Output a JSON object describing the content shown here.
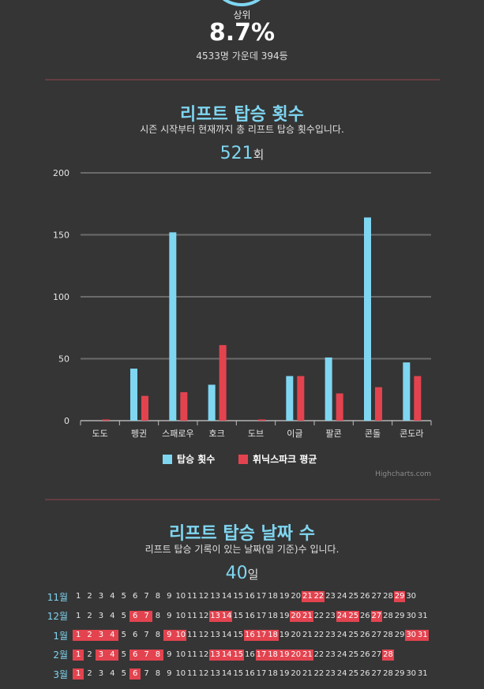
{
  "rank": {
    "label": "상위",
    "percent": "8.7%",
    "detail": "4533명 가운데 394등"
  },
  "lift": {
    "title": "리프트 탑승 횟수",
    "subtitle": "시즌 시작부터 현재까지 총 리프트 탑승 횟수입니다.",
    "total": "521",
    "total_unit": "회"
  },
  "chart_data": {
    "type": "bar",
    "categories": [
      "도도",
      "펭귄",
      "스패로우",
      "호크",
      "도브",
      "이글",
      "팔콘",
      "콘돌",
      "콘도라"
    ],
    "series": [
      {
        "name": "탑승 횟수",
        "values": [
          0,
          42,
          152,
          29,
          0,
          36,
          51,
          164,
          47
        ],
        "color": "#7fd6f1"
      },
      {
        "name": "휘닉스파크 평균",
        "values": [
          1,
          20,
          23,
          61,
          1,
          36,
          22,
          27,
          36
        ],
        "color": "#e3434f"
      }
    ],
    "ylim": [
      0,
      200
    ],
    "yticks": [
      0,
      50,
      100,
      150,
      200
    ],
    "legend": "bottom-center",
    "grid": true,
    "credits": "Highcharts.com"
  },
  "days": {
    "title": "리프트 탑승 날짜 수",
    "subtitle": "리프트 탑승 기록이 있는 날짜(일 기준)수 입니다.",
    "total": "40",
    "total_unit": "일",
    "months": [
      {
        "label": "11월",
        "days": 30,
        "active": [
          21,
          22,
          29
        ]
      },
      {
        "label": "12월",
        "days": 31,
        "active": [
          6,
          7,
          13,
          14,
          20,
          21,
          24,
          25,
          27
        ]
      },
      {
        "label": "1월",
        "days": 31,
        "active": [
          1,
          2,
          3,
          4,
          9,
          10,
          16,
          17,
          18,
          30,
          31
        ]
      },
      {
        "label": "2월",
        "days": 28,
        "active": [
          1,
          3,
          4,
          6,
          7,
          8,
          13,
          14,
          15,
          17,
          18,
          19,
          20,
          21,
          28
        ]
      },
      {
        "label": "3월",
        "days": 31,
        "active": [
          1,
          6
        ]
      }
    ]
  }
}
